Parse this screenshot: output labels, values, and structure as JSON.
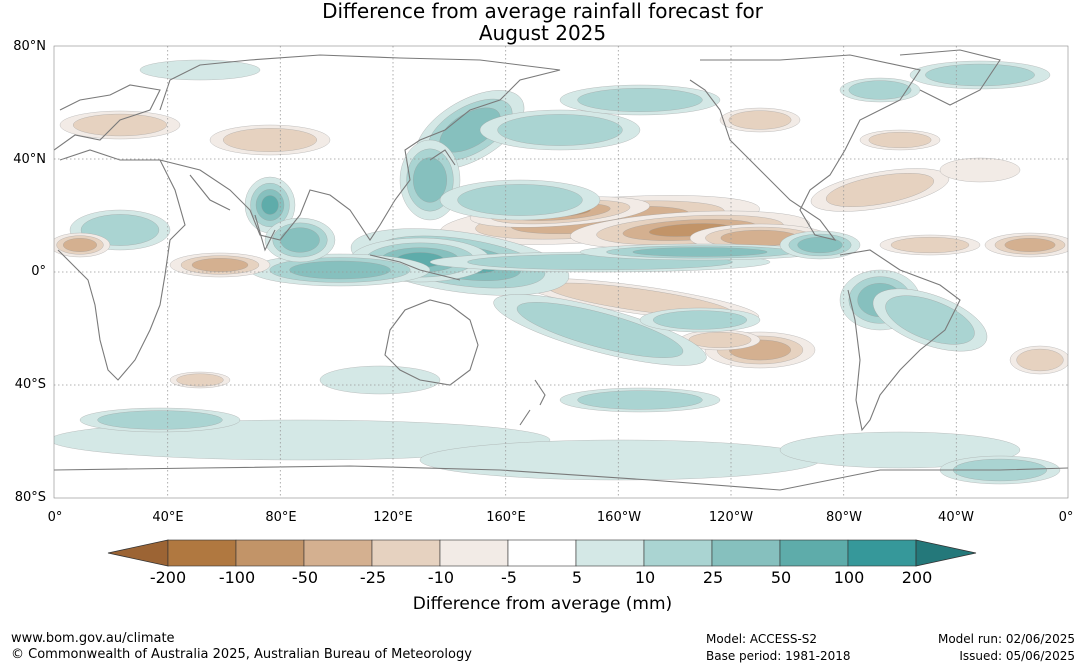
{
  "title": {
    "line1": "Difference from average rainfall forecast for",
    "line2": "August 2025"
  },
  "map": {
    "lat_labels": [
      "80°N",
      "40°N",
      "0°",
      "40°S",
      "80°S"
    ],
    "lon_labels": [
      "0°",
      "40°E",
      "80°E",
      "120°E",
      "160°E",
      "160°W",
      "120°W",
      "80°W",
      "40°W",
      "0°"
    ],
    "gridlines": true,
    "projection": "equirectangular"
  },
  "colorbar": {
    "ticks": [
      "-200",
      "-100",
      "-50",
      "-25",
      "-10",
      "-5",
      "5",
      "10",
      "25",
      "50",
      "100",
      "200"
    ],
    "colors": [
      "#9c6434",
      "#b07840",
      "#c29468",
      "#d4b090",
      "#e6d2c0",
      "#f2ebe6",
      "#ffffff",
      "#d4e8e6",
      "#aad4d2",
      "#86c0be",
      "#5eacaa",
      "#36989a",
      "#24787a"
    ],
    "label": "Difference from average (mm)",
    "extend": "both"
  },
  "footer": {
    "website": "www.bom.gov.au/climate",
    "copyright": "© Commonwealth of Australia 2025, Australian Bureau of Meteorology",
    "model": "Model: ACCESS-S2",
    "base_period": "Base period: 1981-2018",
    "model_run": "Model run: 02/06/2025",
    "issued": "Issued: 05/06/2025"
  }
}
